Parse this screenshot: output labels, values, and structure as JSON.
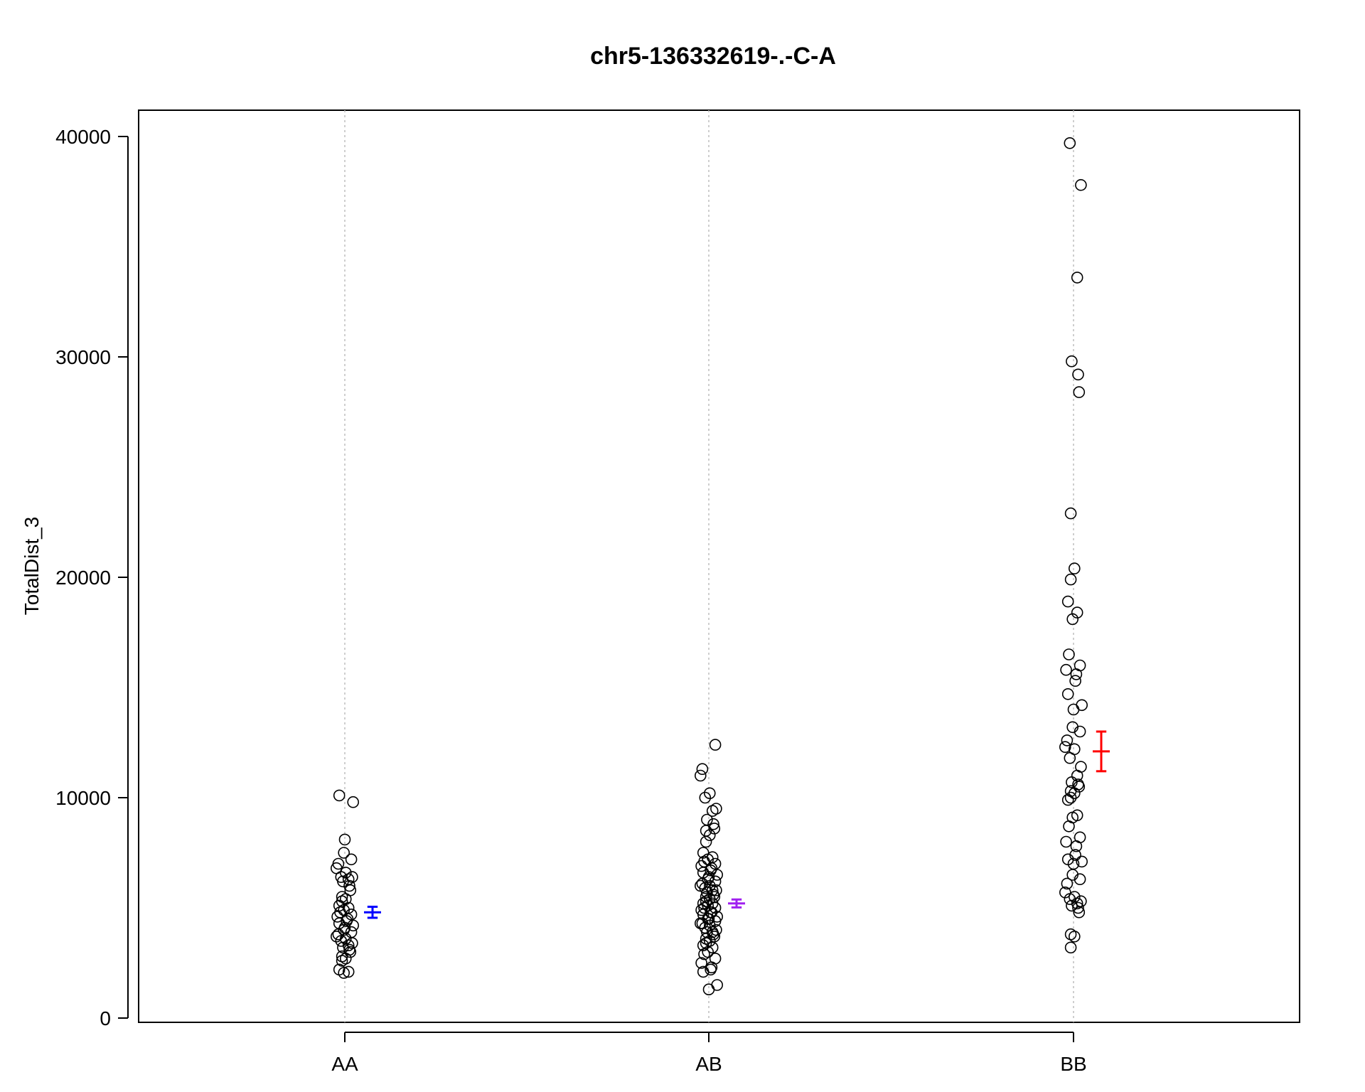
{
  "chart_data": {
    "type": "scatter",
    "title": "chr5-136332619-.-C-A",
    "xlabel": "",
    "ylabel": "TotalDist_3",
    "categories": [
      "AA",
      "AB",
      "BB"
    ],
    "yticks": [
      "0",
      "10000",
      "20000",
      "30000",
      "40000"
    ],
    "ylim": [
      -200,
      41200
    ],
    "grid": "vertical dotted lines at each category",
    "series": [
      {
        "category": "AA",
        "color": "#0000ff",
        "mean": 4800,
        "se_low": 4550,
        "se_high": 5050,
        "points": [
          10100,
          9800,
          8100,
          7500,
          7200,
          7000,
          6800,
          6600,
          6400,
          6400,
          6300,
          6200,
          6000,
          5800,
          5500,
          5400,
          5300,
          5100,
          5000,
          4900,
          4800,
          4700,
          4600,
          4500,
          4400,
          4300,
          4200,
          4100,
          4000,
          3900,
          3800,
          3700,
          3600,
          3500,
          3400,
          3300,
          3200,
          3100,
          3000,
          2800,
          2700,
          2600,
          2200,
          2100,
          2050
        ]
      },
      {
        "category": "AB",
        "color": "#a020f0",
        "mean": 5200,
        "se_low": 5020,
        "se_high": 5380,
        "points": [
          12400,
          11300,
          11000,
          10200,
          10000,
          9500,
          9400,
          9000,
          8800,
          8600,
          8500,
          8300,
          8000,
          7500,
          7300,
          7200,
          7100,
          7000,
          6900,
          6800,
          6700,
          6600,
          6500,
          6400,
          6300,
          6200,
          6100,
          6000,
          6000,
          5900,
          5800,
          5800,
          5700,
          5600,
          5500,
          5500,
          5400,
          5300,
          5200,
          5200,
          5100,
          5000,
          5000,
          4900,
          4800,
          4800,
          4700,
          4600,
          4500,
          4500,
          4400,
          4300,
          4300,
          4200,
          4100,
          4000,
          3900,
          3900,
          3800,
          3700,
          3600,
          3500,
          3400,
          3300,
          3200,
          3000,
          2900,
          2700,
          2500,
          2300,
          2200,
          2100,
          1500,
          1300
        ]
      },
      {
        "category": "BB",
        "color": "#ff0000",
        "mean": 12100,
        "se_low": 11200,
        "se_high": 13000,
        "points": [
          39700,
          37800,
          33600,
          29800,
          29200,
          28400,
          22900,
          20400,
          19900,
          18900,
          18400,
          18100,
          16500,
          16000,
          15800,
          15600,
          15300,
          14700,
          14200,
          14000,
          13200,
          13000,
          12600,
          12300,
          12200,
          11800,
          11400,
          11000,
          10700,
          10600,
          10500,
          10300,
          10200,
          10000,
          9900,
          9200,
          9100,
          8700,
          8200,
          8000,
          7800,
          7400,
          7200,
          7100,
          7000,
          6500,
          6300,
          6100,
          5700,
          5500,
          5400,
          5300,
          5200,
          5100,
          5000,
          4800,
          3800,
          3700,
          3200
        ]
      }
    ]
  }
}
